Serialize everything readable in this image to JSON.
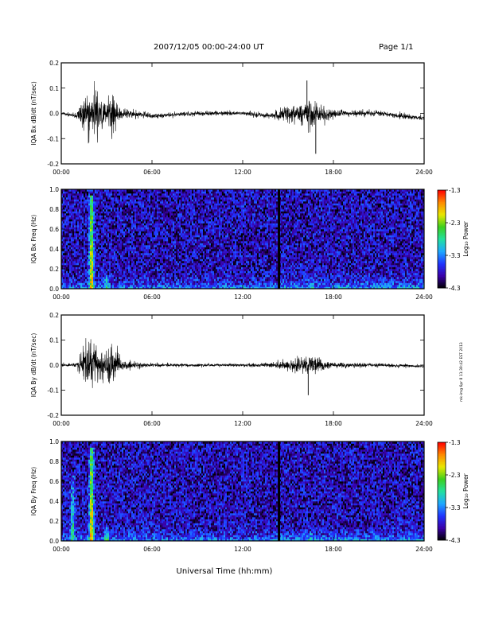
{
  "header": {
    "date_range": "2007/12/05  00:00-24:00 UT",
    "page": "Page 1/1"
  },
  "footer": {
    "xlabel": "Universal Time (hh:mm)"
  },
  "side_note": "mk-img 6pr 8 11:39:42 EST 2013",
  "colors": {
    "trace": "#000000",
    "colormap": [
      "#000000",
      "#3a00a8",
      "#1f35ff",
      "#1fa8ff",
      "#22e0a0",
      "#3ccf1e",
      "#e8e800",
      "#ff8a00",
      "#ff0000"
    ]
  },
  "chart_data": [
    {
      "type": "line",
      "ylabel": "IQA Bx dB/dt (nT/sec)",
      "xlim": [
        "00:00",
        "24:00"
      ],
      "ylim": [
        -0.2,
        0.2
      ],
      "xticks": [
        "00:00",
        "06:00",
        "12:00",
        "18:00",
        "24:00"
      ],
      "yticks": [
        "-0.2",
        "-0.1",
        "0.0",
        "0.1",
        "0.2"
      ],
      "x": [
        "00:00",
        "01:00",
        "01:45",
        "02:00",
        "02:15",
        "03:00",
        "03:20",
        "04:00",
        "06:00",
        "09:00",
        "12:00",
        "14:00",
        "15:00",
        "16:00",
        "16:30",
        "17:00",
        "17:30",
        "18:00",
        "21:00",
        "24:00"
      ],
      "baseline": [
        0.0,
        -0.01,
        0.0,
        0.0,
        0.0,
        0.0,
        0.0,
        0.0,
        -0.01,
        0.0,
        0.0,
        -0.01,
        0.0,
        0.0,
        0.0,
        0.0,
        -0.01,
        0.0,
        0.0,
        -0.02
      ],
      "envelope": [
        0.012,
        0.015,
        0.2,
        0.2,
        0.2,
        0.08,
        0.17,
        0.04,
        0.02,
        0.017,
        0.017,
        0.025,
        0.06,
        0.08,
        0.12,
        0.08,
        0.045,
        0.03,
        0.02,
        0.018
      ],
      "spikes": [
        {
          "x": "16:15",
          "y": 0.13
        },
        {
          "x": "16:50",
          "y": -0.16
        }
      ]
    },
    {
      "type": "heatmap",
      "ylabel": "IQA Bx Freq (Hz)",
      "xlim": [
        "00:00",
        "24:00"
      ],
      "ylim": [
        0.0,
        1.0
      ],
      "xticks": [
        "00:00",
        "06:00",
        "12:00",
        "18:00",
        "24:00"
      ],
      "yticks": [
        "0.0",
        "0.2",
        "0.4",
        "0.6",
        "0.8",
        "1.0"
      ],
      "colorbar": {
        "label": "Log₁₀ Power",
        "range": [
          -4.3,
          -1.3
        ],
        "ticks": [
          "-1.3",
          "-2.3",
          "-3.3",
          "-4.3"
        ]
      },
      "data_gap_at": "14:24",
      "enhancements": [
        {
          "x": "02:00",
          "fmax": 0.95,
          "level": -1.8
        },
        {
          "x": "03:00",
          "fmax": 0.15,
          "level": -2.6
        },
        {
          "x": "16:30",
          "fmax": 0.12,
          "level": -2.8
        }
      ]
    },
    {
      "type": "line",
      "ylabel": "IQA By dB/dt (nT/sec)",
      "xlim": [
        "00:00",
        "24:00"
      ],
      "ylim": [
        -0.2,
        0.2
      ],
      "xticks": [
        "00:00",
        "06:00",
        "12:00",
        "18:00",
        "24:00"
      ],
      "yticks": [
        "-0.2",
        "-0.1",
        "0.0",
        "0.1",
        "0.2"
      ],
      "x": [
        "00:00",
        "01:00",
        "01:45",
        "02:00",
        "02:15",
        "03:00",
        "03:20",
        "04:00",
        "06:00",
        "09:00",
        "12:00",
        "14:00",
        "15:00",
        "15:40",
        "16:00",
        "16:30",
        "17:00",
        "17:30",
        "18:00",
        "21:00",
        "24:00"
      ],
      "baseline": [
        0.0,
        0.0,
        0.0,
        0.0,
        0.0,
        0.0,
        0.0,
        0.0,
        0.0,
        0.0,
        0.0,
        0.0,
        0.0,
        0.0,
        0.0,
        0.0,
        0.0,
        0.0,
        0.0,
        0.0,
        -0.005
      ],
      "envelope": [
        0.012,
        0.015,
        0.2,
        0.2,
        0.2,
        0.1,
        0.2,
        0.035,
        0.015,
        0.012,
        0.012,
        0.02,
        0.04,
        0.06,
        0.07,
        0.08,
        0.06,
        0.035,
        0.02,
        0.015,
        0.012
      ],
      "spikes": [
        {
          "x": "16:20",
          "y": -0.12
        }
      ]
    },
    {
      "type": "heatmap",
      "ylabel": "IQA By Freq (Hz)",
      "xlim": [
        "00:00",
        "24:00"
      ],
      "ylim": [
        0.0,
        1.0
      ],
      "xticks": [
        "00:00",
        "06:00",
        "12:00",
        "18:00",
        "24:00"
      ],
      "yticks": [
        "0.0",
        "0.2",
        "0.4",
        "0.6",
        "0.8",
        "1.0"
      ],
      "colorbar": {
        "label": "Log₁₀ Power",
        "range": [
          -4.3,
          -1.3
        ],
        "ticks": [
          "-1.3",
          "-2.3",
          "-3.3",
          "-4.3"
        ]
      },
      "data_gap_at": "14:24",
      "enhancements": [
        {
          "x": "00:45",
          "fmax": 0.7,
          "level": -2.7
        },
        {
          "x": "02:00",
          "fmax": 0.95,
          "level": -1.8
        },
        {
          "x": "03:00",
          "fmax": 0.15,
          "level": -2.6
        },
        {
          "x": "16:30",
          "fmax": 0.1,
          "level": -2.8
        }
      ]
    }
  ]
}
